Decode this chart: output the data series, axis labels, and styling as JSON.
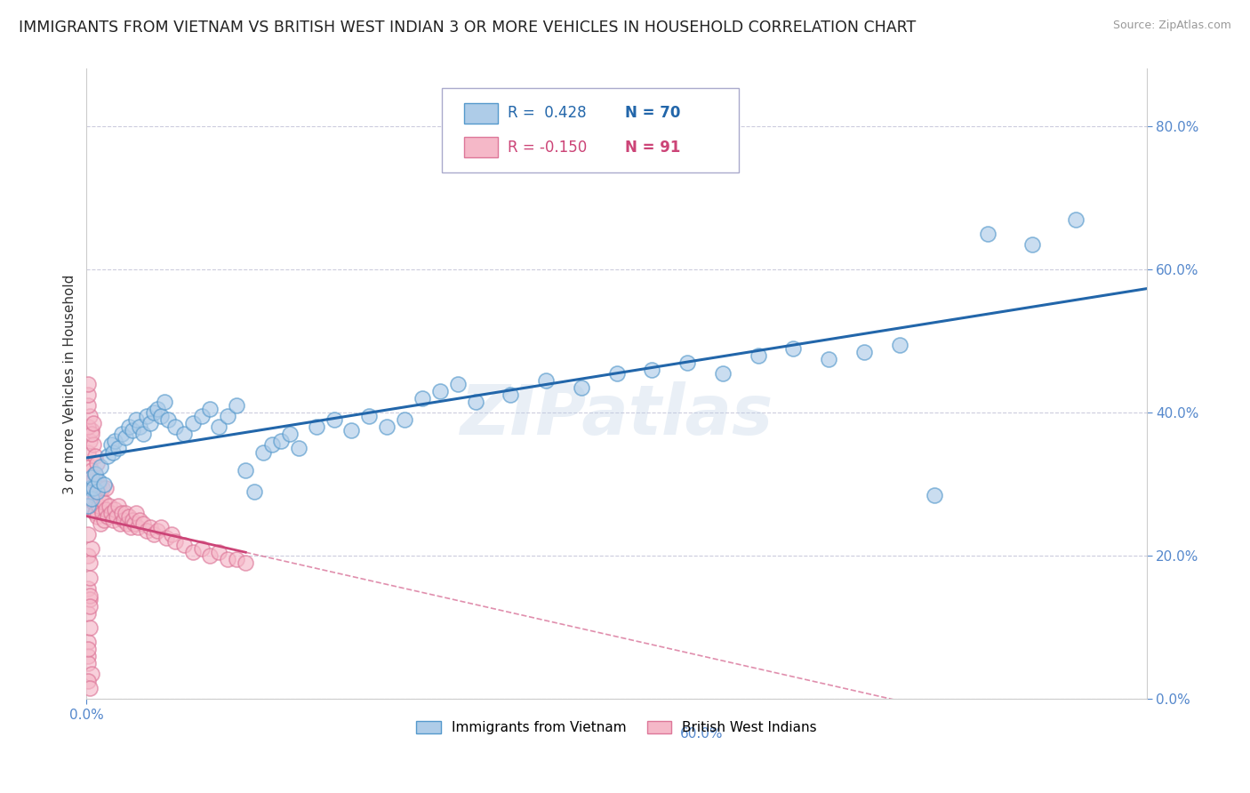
{
  "title": "IMMIGRANTS FROM VIETNAM VS BRITISH WEST INDIAN 3 OR MORE VEHICLES IN HOUSEHOLD CORRELATION CHART",
  "source": "Source: ZipAtlas.com",
  "ylabel_label": "3 or more Vehicles in Household",
  "legend_blue_label": "Immigrants from Vietnam",
  "legend_pink_label": "British West Indians",
  "blue_R": 0.428,
  "blue_N": 70,
  "pink_R": -0.15,
  "pink_N": 91,
  "blue_color": "#aecce8",
  "blue_edge_color": "#5599cc",
  "blue_line_color": "#2266aa",
  "pink_color": "#f5b8c8",
  "pink_edge_color": "#dd7799",
  "pink_line_color": "#cc4477",
  "watermark": "ZIPatlas",
  "xlim": [
    0.0,
    0.6
  ],
  "ylim": [
    0.0,
    0.88
  ],
  "ytick_labels": [
    "0.0%",
    "20.0%",
    "40.0%",
    "60.0%",
    "80.0%"
  ],
  "ytick_vals": [
    0.0,
    0.2,
    0.4,
    0.6,
    0.8
  ],
  "blue_scatter_x": [
    0.001,
    0.002,
    0.003,
    0.003,
    0.004,
    0.005,
    0.006,
    0.007,
    0.008,
    0.01,
    0.012,
    0.014,
    0.015,
    0.016,
    0.018,
    0.02,
    0.022,
    0.024,
    0.026,
    0.028,
    0.03,
    0.032,
    0.034,
    0.036,
    0.038,
    0.04,
    0.042,
    0.044,
    0.046,
    0.05,
    0.055,
    0.06,
    0.065,
    0.07,
    0.075,
    0.08,
    0.085,
    0.09,
    0.095,
    0.1,
    0.105,
    0.11,
    0.115,
    0.12,
    0.13,
    0.14,
    0.15,
    0.16,
    0.17,
    0.18,
    0.19,
    0.2,
    0.21,
    0.22,
    0.24,
    0.26,
    0.28,
    0.3,
    0.32,
    0.34,
    0.36,
    0.38,
    0.4,
    0.42,
    0.44,
    0.46,
    0.48,
    0.51,
    0.535,
    0.56
  ],
  "blue_scatter_y": [
    0.27,
    0.295,
    0.28,
    0.31,
    0.295,
    0.315,
    0.29,
    0.305,
    0.325,
    0.3,
    0.34,
    0.355,
    0.345,
    0.36,
    0.35,
    0.37,
    0.365,
    0.38,
    0.375,
    0.39,
    0.38,
    0.37,
    0.395,
    0.385,
    0.4,
    0.405,
    0.395,
    0.415,
    0.39,
    0.38,
    0.37,
    0.385,
    0.395,
    0.405,
    0.38,
    0.395,
    0.41,
    0.32,
    0.29,
    0.345,
    0.355,
    0.36,
    0.37,
    0.35,
    0.38,
    0.39,
    0.375,
    0.395,
    0.38,
    0.39,
    0.42,
    0.43,
    0.44,
    0.415,
    0.425,
    0.445,
    0.435,
    0.455,
    0.46,
    0.47,
    0.455,
    0.48,
    0.49,
    0.475,
    0.485,
    0.495,
    0.285,
    0.65,
    0.635,
    0.67
  ],
  "pink_scatter_x": [
    0.001,
    0.001,
    0.002,
    0.002,
    0.003,
    0.003,
    0.003,
    0.004,
    0.004,
    0.005,
    0.005,
    0.005,
    0.006,
    0.006,
    0.007,
    0.007,
    0.008,
    0.008,
    0.009,
    0.009,
    0.01,
    0.01,
    0.011,
    0.011,
    0.012,
    0.013,
    0.014,
    0.015,
    0.016,
    0.017,
    0.018,
    0.019,
    0.02,
    0.021,
    0.022,
    0.023,
    0.024,
    0.025,
    0.026,
    0.027,
    0.028,
    0.029,
    0.03,
    0.032,
    0.034,
    0.036,
    0.038,
    0.04,
    0.042,
    0.045,
    0.048,
    0.05,
    0.055,
    0.06,
    0.065,
    0.07,
    0.075,
    0.08,
    0.085,
    0.09,
    0.001,
    0.002,
    0.003,
    0.004,
    0.005,
    0.006,
    0.001,
    0.002,
    0.003,
    0.004,
    0.001,
    0.002,
    0.003,
    0.001,
    0.002,
    0.001,
    0.002,
    0.001,
    0.002,
    0.001,
    0.001,
    0.001,
    0.001,
    0.001,
    0.002,
    0.002,
    0.001,
    0.003,
    0.001,
    0.002,
    0.001
  ],
  "pink_scatter_y": [
    0.28,
    0.31,
    0.295,
    0.325,
    0.265,
    0.295,
    0.32,
    0.275,
    0.305,
    0.26,
    0.285,
    0.315,
    0.255,
    0.29,
    0.27,
    0.3,
    0.245,
    0.28,
    0.26,
    0.295,
    0.25,
    0.275,
    0.265,
    0.295,
    0.255,
    0.27,
    0.26,
    0.25,
    0.265,
    0.255,
    0.27,
    0.245,
    0.26,
    0.25,
    0.26,
    0.245,
    0.255,
    0.24,
    0.25,
    0.245,
    0.26,
    0.24,
    0.25,
    0.245,
    0.235,
    0.24,
    0.23,
    0.235,
    0.24,
    0.225,
    0.23,
    0.22,
    0.215,
    0.205,
    0.21,
    0.2,
    0.205,
    0.195,
    0.195,
    0.19,
    0.345,
    0.36,
    0.375,
    0.355,
    0.34,
    0.33,
    0.38,
    0.395,
    0.37,
    0.385,
    0.2,
    0.19,
    0.21,
    0.155,
    0.17,
    0.12,
    0.14,
    0.08,
    0.1,
    0.06,
    0.41,
    0.425,
    0.44,
    0.05,
    0.145,
    0.13,
    0.07,
    0.035,
    0.025,
    0.015,
    0.23
  ]
}
